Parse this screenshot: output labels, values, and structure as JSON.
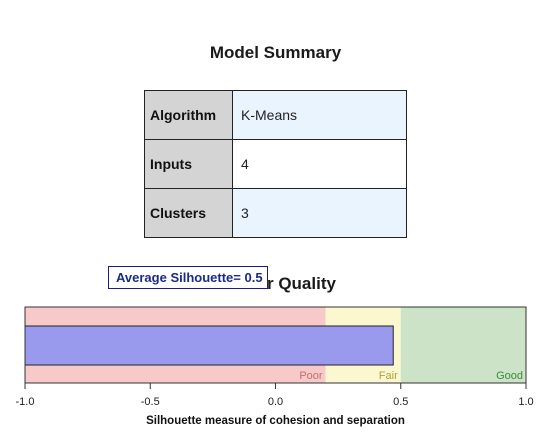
{
  "summary": {
    "title": "Model Summary",
    "rows": [
      {
        "key": "Algorithm",
        "value": "K-Means"
      },
      {
        "key": "Inputs",
        "value": "4"
      },
      {
        "key": "Clusters",
        "value": "3"
      }
    ]
  },
  "quality": {
    "title": "Cluster Quality",
    "tooltip": "Average Silhouette= 0.5"
  },
  "chart_data": {
    "type": "bar",
    "orientation": "horizontal",
    "values": [
      0.47
    ],
    "xlabel": "Silhouette measure of cohesion and separation",
    "xlim": [
      -1.0,
      1.0
    ],
    "ticks": [
      -1.0,
      -0.5,
      0.0,
      0.5,
      1.0
    ],
    "tick_labels": [
      "-1.0",
      "-0.5",
      "0.0",
      "0.5",
      "1.0"
    ],
    "bands": [
      {
        "label": "Poor",
        "from": -1.0,
        "to": 0.2,
        "color": "#f7c9c9",
        "label_color": "#c07070"
      },
      {
        "label": "Fair",
        "from": 0.2,
        "to": 0.5,
        "color": "#fbf7cf",
        "label_color": "#b0a040"
      },
      {
        "label": "Good",
        "from": 0.5,
        "to": 1.0,
        "color": "#cce3c8",
        "label_color": "#3c8c3c"
      }
    ],
    "bar_color": "#9999ee",
    "grid": false
  }
}
